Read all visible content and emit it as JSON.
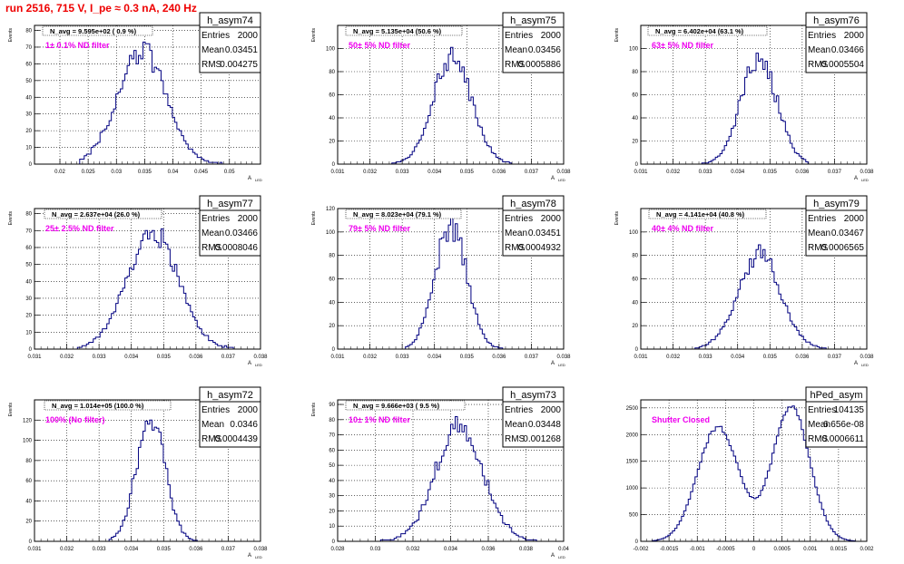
{
  "page": {
    "title": "run 2516,   715 V, I_pe ≈ 0.3 nA, 240 Hz"
  },
  "style": {
    "title_color": "#ee0000",
    "annotation_color": "#ee00ee",
    "histogram_color": "#000080"
  },
  "chart_data": [
    {
      "type": "histogram",
      "name": "h_asym74",
      "ylabel": "Events",
      "xlabel": "A",
      "xlabel_sub": "LED",
      "xlim": [
        0.0155,
        0.0555
      ],
      "ylim": [
        0,
        83
      ],
      "xticks": [
        0.02,
        0.025,
        0.03,
        0.035,
        0.04,
        0.045,
        0.05
      ],
      "xtick_labels": [
        "0.02",
        "0.025",
        "0.03",
        "0.035",
        "0.04",
        "0.045",
        "0.05"
      ],
      "yticks": [
        0,
        10,
        20,
        30,
        40,
        50,
        60,
        70,
        80
      ],
      "nbins": 100,
      "shape": {
        "peaks": [
          {
            "mu": 0.0345,
            "sigma": 0.0043,
            "amp": 68
          }
        ],
        "xmin": 0.0235,
        "xmax": 0.0505,
        "noise": 0.1
      },
      "stats": {
        "entries": "2000",
        "mean": "0.03451",
        "rms": "0.004275"
      },
      "navg": "N_avg = 9.595e+02 ( 0.9 %)",
      "annotation": "1± 0.1% ND filter"
    },
    {
      "type": "histogram",
      "name": "h_asym75",
      "ylabel": "Events",
      "xlabel": "A",
      "xlabel_sub": "LED",
      "xlim": [
        0.031,
        0.038
      ],
      "ylim": [
        0,
        120
      ],
      "xticks": [
        0.031,
        0.032,
        0.033,
        0.034,
        0.035,
        0.036,
        0.037,
        0.038
      ],
      "xtick_labels": [
        "0.031",
        "0.032",
        "0.033",
        "0.034",
        "0.035",
        "0.036",
        "0.037",
        "0.038"
      ],
      "yticks": [
        0,
        20,
        40,
        60,
        80,
        100
      ],
      "nbins": 100,
      "shape": {
        "peaks": [
          {
            "mu": 0.03456,
            "sigma": 0.00059,
            "amp": 94
          }
        ],
        "xmin": 0.0326,
        "xmax": 0.0364,
        "noise": 0.1
      },
      "stats": {
        "entries": "2000",
        "mean": "0.03456",
        "rms": "0.0005886"
      },
      "navg": "N_avg = 5.135e+04 (50.6 %)",
      "annotation": "50± 5% ND filter"
    },
    {
      "type": "histogram",
      "name": "h_asym76",
      "ylabel": "Events",
      "xlabel": "A",
      "xlabel_sub": "LED",
      "xlim": [
        0.031,
        0.038
      ],
      "ylim": [
        0,
        120
      ],
      "xticks": [
        0.031,
        0.032,
        0.033,
        0.034,
        0.035,
        0.036,
        0.037,
        0.038
      ],
      "xtick_labels": [
        "0.031",
        "0.032",
        "0.033",
        "0.034",
        "0.035",
        "0.036",
        "0.037",
        "0.038"
      ],
      "yticks": [
        0,
        20,
        40,
        60,
        80,
        100
      ],
      "nbins": 100,
      "shape": {
        "peaks": [
          {
            "mu": 0.03466,
            "sigma": 0.00055,
            "amp": 92
          }
        ],
        "xmin": 0.0327,
        "xmax": 0.0362,
        "noise": 0.1
      },
      "stats": {
        "entries": "2000",
        "mean": "0.03466",
        "rms": "0.0005504"
      },
      "navg": "N_avg = 6.402e+04 (63.1 %)",
      "annotation": "63± 5% ND filter"
    },
    {
      "type": "histogram",
      "name": "h_asym77",
      "ylabel": "Events",
      "xlabel": "A",
      "xlabel_sub": "LED",
      "xlim": [
        0.031,
        0.038
      ],
      "ylim": [
        0,
        83
      ],
      "xticks": [
        0.031,
        0.032,
        0.033,
        0.034,
        0.035,
        0.036,
        0.037,
        0.038
      ],
      "xtick_labels": [
        "0.031",
        "0.032",
        "0.033",
        "0.034",
        "0.035",
        "0.036",
        "0.037",
        "0.038"
      ],
      "yticks": [
        0,
        10,
        20,
        30,
        40,
        50,
        60,
        70,
        80
      ],
      "nbins": 100,
      "shape": {
        "peaks": [
          {
            "mu": 0.03466,
            "sigma": 0.0008,
            "amp": 68
          }
        ],
        "xmin": 0.0323,
        "xmax": 0.0372,
        "noise": 0.1
      },
      "stats": {
        "entries": "2000",
        "mean": "0.03466",
        "rms": "0.0008046"
      },
      "navg": "N_avg = 2.637e+04 (26.0 %)",
      "annotation": "25± 2.5% ND filter"
    },
    {
      "type": "histogram",
      "name": "h_asym78",
      "ylabel": "Events",
      "xlabel": "A",
      "xlabel_sub": "LED",
      "xlim": [
        0.031,
        0.038
      ],
      "ylim": [
        0,
        120
      ],
      "xticks": [
        0.031,
        0.032,
        0.033,
        0.034,
        0.035,
        0.036,
        0.037,
        0.038
      ],
      "xtick_labels": [
        "0.031",
        "0.032",
        "0.033",
        "0.034",
        "0.035",
        "0.036",
        "0.037",
        "0.038"
      ],
      "yticks": [
        0,
        20,
        40,
        60,
        80,
        100,
        120
      ],
      "nbins": 100,
      "shape": {
        "peaks": [
          {
            "mu": 0.03451,
            "sigma": 0.00049,
            "amp": 105
          }
        ],
        "xmin": 0.0331,
        "xmax": 0.0362,
        "noise": 0.1
      },
      "stats": {
        "entries": "2000",
        "mean": "0.03451",
        "rms": "0.0004932"
      },
      "navg": "N_avg = 8.023e+04 (79.1 %)",
      "annotation": "79± 5% ND filter"
    },
    {
      "type": "histogram",
      "name": "h_asym79",
      "ylabel": "Events",
      "xlabel": "A",
      "xlabel_sub": "LED",
      "xlim": [
        0.031,
        0.038
      ],
      "ylim": [
        0,
        120
      ],
      "xticks": [
        0.031,
        0.032,
        0.033,
        0.034,
        0.035,
        0.036,
        0.037,
        0.038
      ],
      "xtick_labels": [
        "0.031",
        "0.032",
        "0.033",
        "0.034",
        "0.035",
        "0.036",
        "0.037",
        "0.038"
      ],
      "yticks": [
        0,
        20,
        40,
        60,
        80,
        100
      ],
      "nbins": 100,
      "shape": {
        "peaks": [
          {
            "mu": 0.03467,
            "sigma": 0.00066,
            "amp": 80
          }
        ],
        "xmin": 0.0327,
        "xmax": 0.0369,
        "noise": 0.1
      },
      "stats": {
        "entries": "2000",
        "mean": "0.03467",
        "rms": "0.0006565"
      },
      "navg": "N_avg = 4.141e+04 (40.8 %)",
      "annotation": "40± 4% ND filter"
    },
    {
      "type": "histogram",
      "name": "h_asym72",
      "ylabel": "Events",
      "xlabel": "A",
      "xlabel_sub": "LED",
      "xlim": [
        0.031,
        0.038
      ],
      "ylim": [
        0,
        140
      ],
      "xticks": [
        0.031,
        0.032,
        0.033,
        0.034,
        0.035,
        0.036,
        0.037,
        0.038
      ],
      "xtick_labels": [
        "0.031",
        "0.032",
        "0.033",
        "0.034",
        "0.035",
        "0.036",
        "0.037",
        "0.038"
      ],
      "yticks": [
        0,
        20,
        40,
        60,
        80,
        100,
        120
      ],
      "nbins": 100,
      "shape": {
        "peaks": [
          {
            "mu": 0.0346,
            "sigma": 0.00044,
            "amp": 122
          }
        ],
        "xmin": 0.0333,
        "xmax": 0.0361,
        "noise": 0.1
      },
      "stats": {
        "entries": "2000",
        "mean": "0.0346",
        "rms": "0.0004439"
      },
      "navg": "N_avg = 1.014e+05 (100.0 %)",
      "annotation": "100% (No filter)"
    },
    {
      "type": "histogram",
      "name": "h_asym73",
      "ylabel": "Events",
      "xlabel": "A",
      "xlabel_sub": "LED",
      "xlim": [
        0.028,
        0.04
      ],
      "ylim": [
        0,
        93
      ],
      "xticks": [
        0.028,
        0.03,
        0.032,
        0.034,
        0.036,
        0.038,
        0.04
      ],
      "xtick_labels": [
        "0.028",
        "0.03",
        "0.032",
        "0.034",
        "0.036",
        "0.038",
        "0.04"
      ],
      "yticks": [
        0,
        10,
        20,
        30,
        40,
        50,
        60,
        70,
        80,
        90
      ],
      "nbins": 100,
      "shape": {
        "peaks": [
          {
            "mu": 0.03448,
            "sigma": 0.00127,
            "amp": 76
          }
        ],
        "xmin": 0.0302,
        "xmax": 0.0386,
        "noise": 0.1
      },
      "stats": {
        "entries": "2000",
        "mean": "0.03448",
        "rms": "0.001268"
      },
      "navg": "N_avg = 9.666e+03 ( 9.5 %)",
      "annotation": "10± 1% ND filter"
    },
    {
      "type": "histogram",
      "name": "hPed_asym",
      "ylabel": "",
      "xlabel": "",
      "xlabel_sub": "",
      "xlim": [
        -0.002,
        0.002
      ],
      "ylim": [
        0,
        2650
      ],
      "xticks": [
        -0.002,
        -0.0015,
        -0.001,
        -0.0005,
        0,
        0.0005,
        0.001,
        0.0015,
        0.002
      ],
      "xtick_labels": [
        "-0.002",
        "-0.0015",
        "-0.001",
        "-0.0005",
        "0",
        "0.0005",
        "0.001",
        "0.0015",
        "0.002"
      ],
      "yticks": [
        0,
        500,
        1000,
        1500,
        2000,
        2500
      ],
      "nbins": 100,
      "shape": {
        "peaks": [
          {
            "mu": -0.00063,
            "sigma": 0.00036,
            "amp": 2150
          },
          {
            "mu": 0.00066,
            "sigma": 0.00033,
            "amp": 2520
          }
        ],
        "xmin": -0.0018,
        "xmax": 0.0018,
        "noise": 0.02
      },
      "stats": {
        "entries": "104135",
        "mean": "6.656e-08",
        "rms": "0.0006611"
      },
      "navg": "",
      "annotation": "Shutter Closed"
    }
  ]
}
